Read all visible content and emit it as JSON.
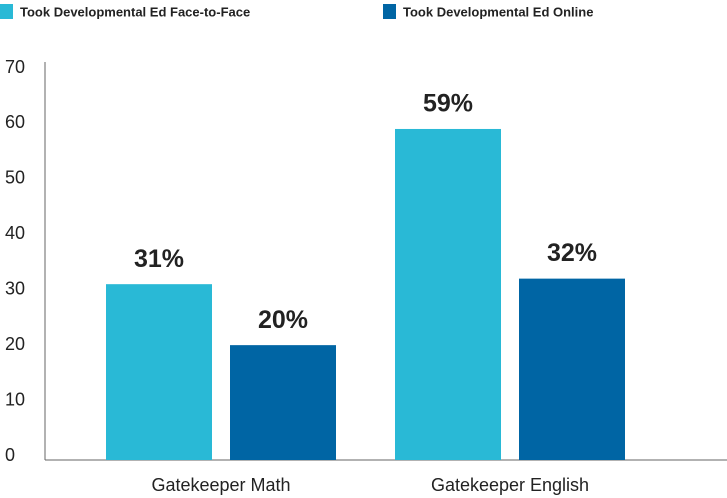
{
  "chart_data": {
    "type": "bar",
    "categories": [
      "Gatekeeper Math",
      "Gatekeeper English"
    ],
    "series": [
      {
        "name": "Took Developmental Ed Face-to-Face",
        "color": "#29b9d6",
        "values": [
          31,
          59
        ],
        "value_labels": [
          "31%",
          "59%"
        ]
      },
      {
        "name": "Took Developmental Ed Online",
        "color": "#0065a4",
        "values": [
          20,
          32
        ],
        "value_labels": [
          "20%",
          "32%"
        ]
      }
    ],
    "ylim": [
      0,
      70
    ],
    "yticks": [
      0,
      10,
      20,
      30,
      40,
      50,
      60,
      70
    ],
    "grid": false,
    "legend": "top-left"
  }
}
